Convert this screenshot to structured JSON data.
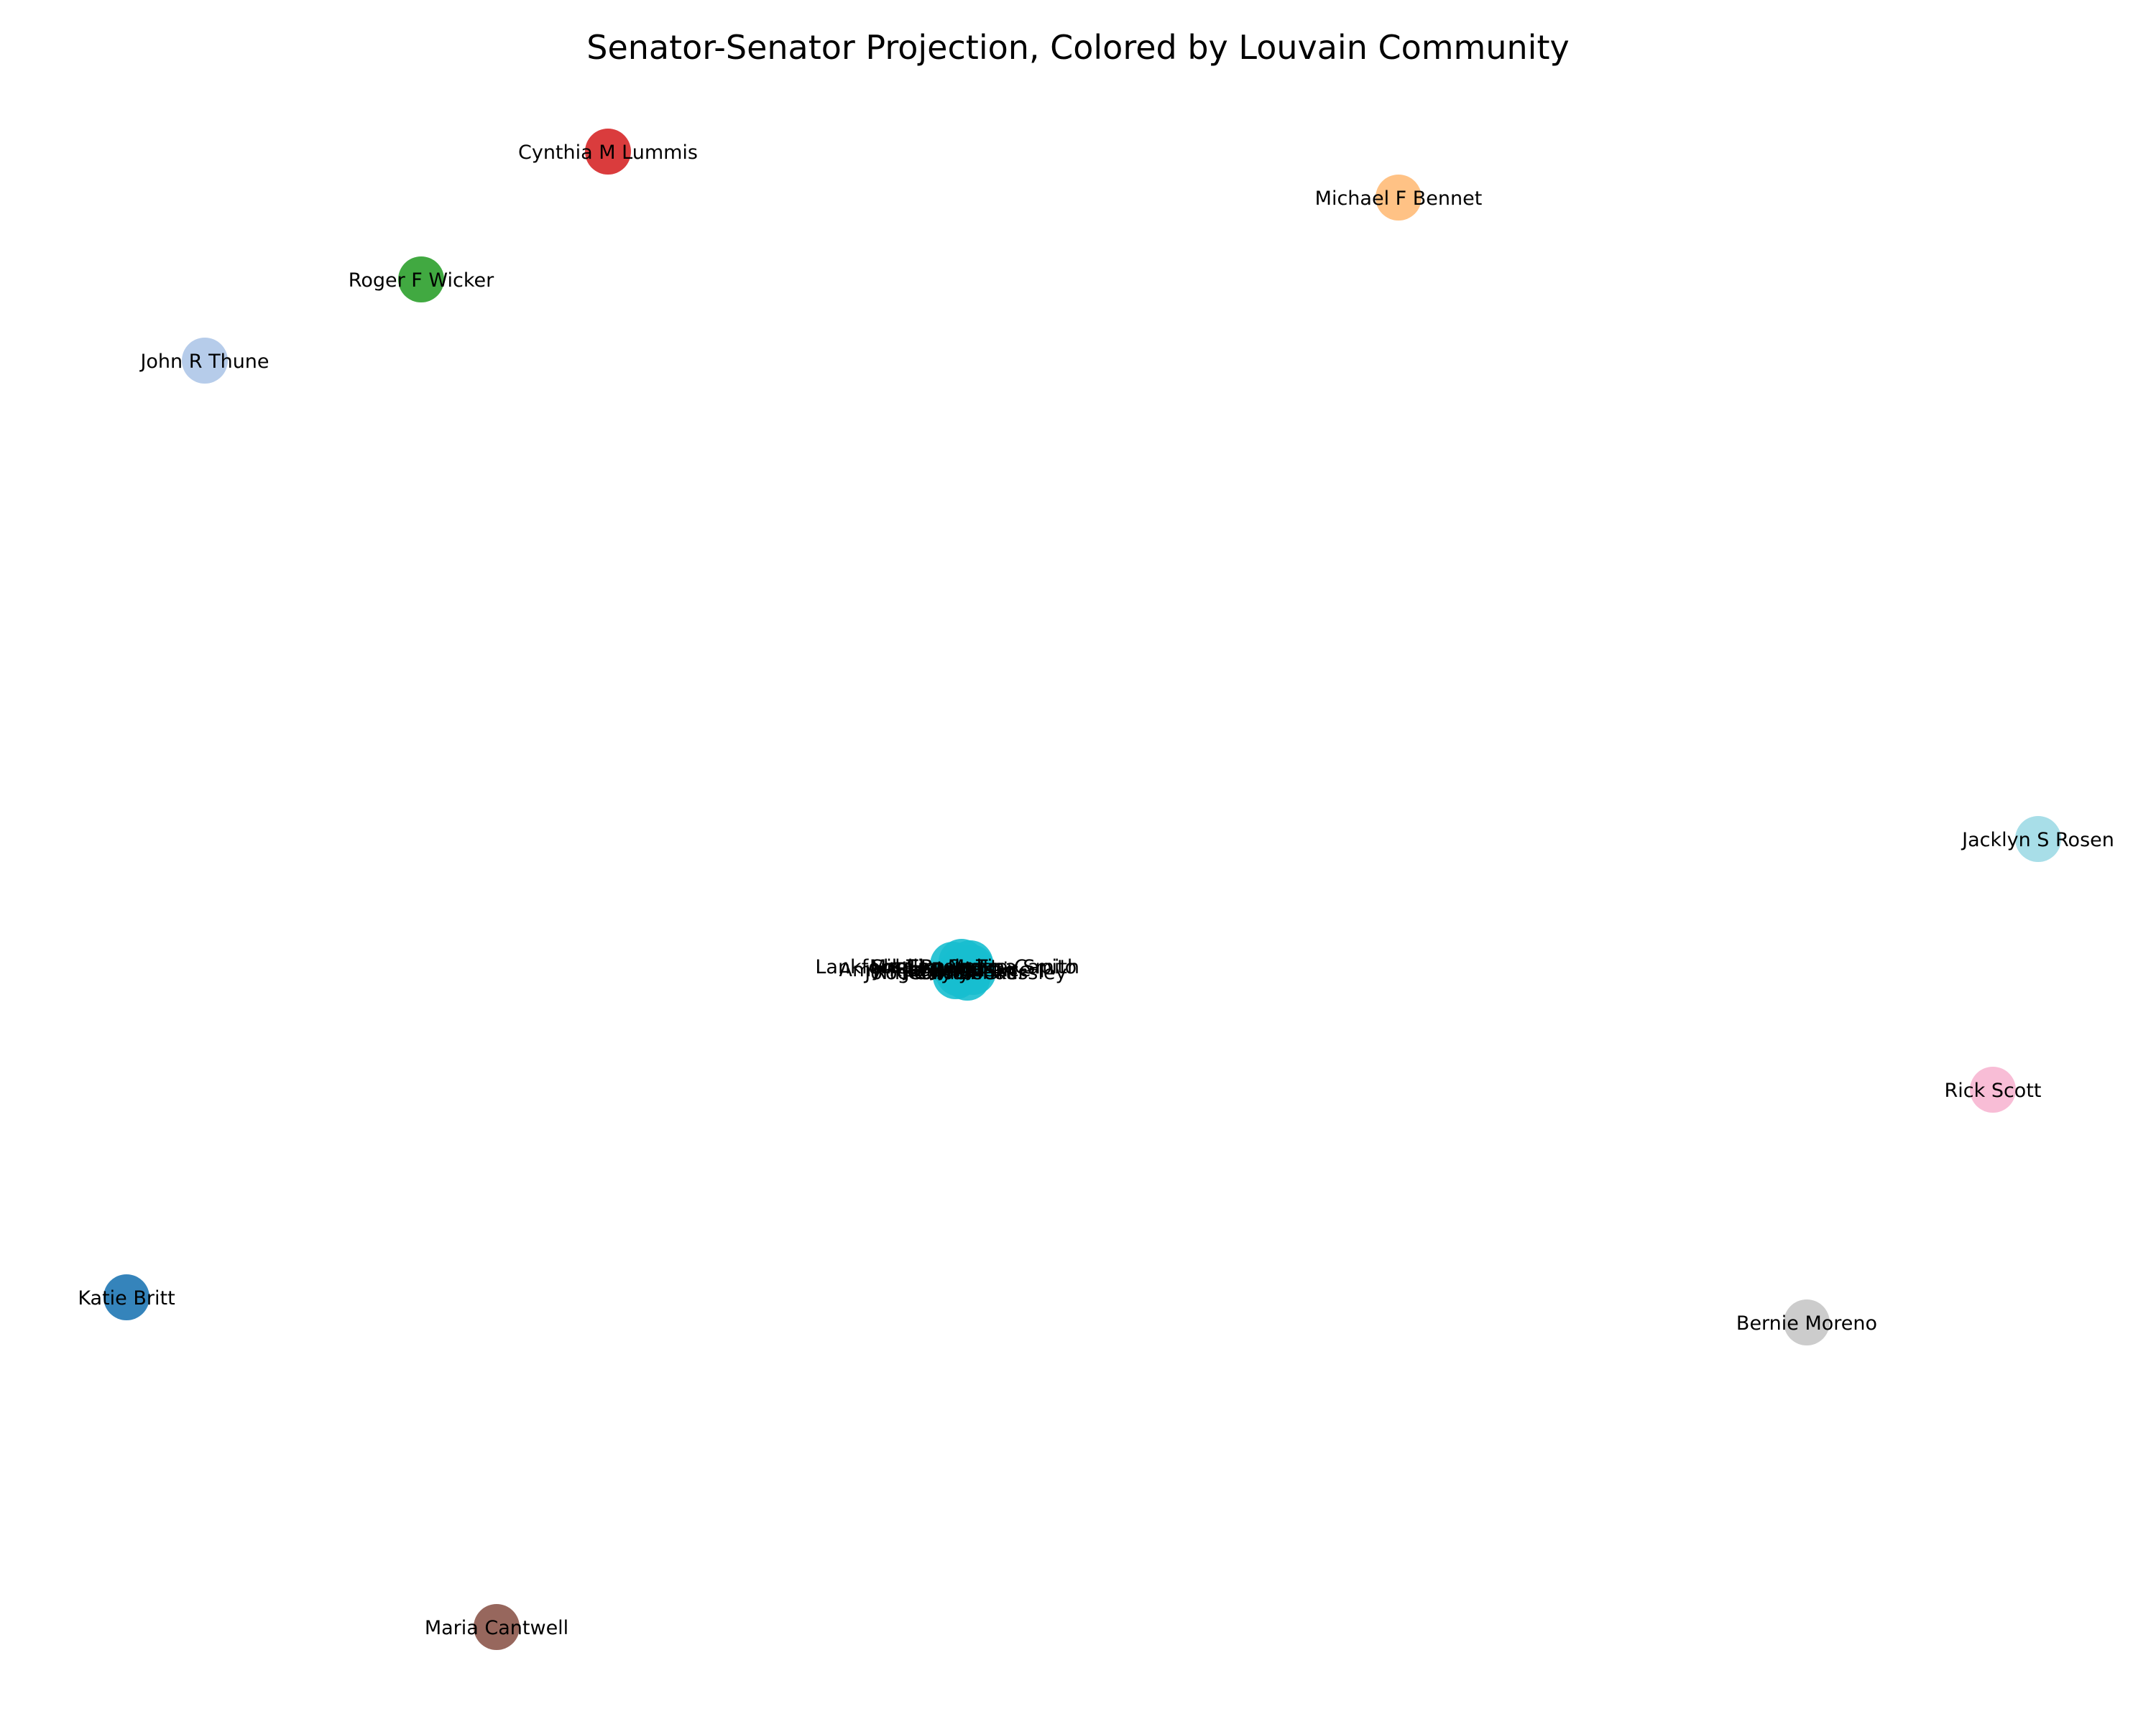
{
  "title": "Senator-Senator Projection, Colored by Louvain Community",
  "nodes": [
    {
      "id": "cynthia",
      "label": "Cynthia M Lummis",
      "color": "#d62728"
    },
    {
      "id": "michael",
      "label": "Michael F Bennet",
      "color": "#ffbb78"
    },
    {
      "id": "roger",
      "label": "Roger F Wicker",
      "color": "#2ca02c"
    },
    {
      "id": "john",
      "label": "John R Thune",
      "color": "#aec7e8"
    },
    {
      "id": "jacklyn",
      "label": "Jacklyn S Rosen",
      "color": "#9edae5"
    },
    {
      "id": "rick",
      "label": "Rick Scott",
      "color": "#f7b6d2"
    },
    {
      "id": "katie",
      "label": "Katie Britt",
      "color": "#1f77b4"
    },
    {
      "id": "bernie",
      "label": "Bernie Moreno",
      "color": "#c7c7c7"
    },
    {
      "id": "maria",
      "label": "Maria Cantwell",
      "color": "#8c564b"
    }
  ],
  "central_cluster": {
    "color": "#17becf",
    "overlapping_labels": [
      "Lankford Sheehy",
      "Amy Klobuchar",
      "John Cornyn",
      "Mike Rounds",
      "Ted Budd",
      "Roger Marshall",
      "Tim Scott",
      "Jerry Moran",
      "Cory Booker",
      "Shelley Moore Capito",
      "Jim Justice",
      "Chuck Grassley",
      "Tina Smith"
    ]
  }
}
